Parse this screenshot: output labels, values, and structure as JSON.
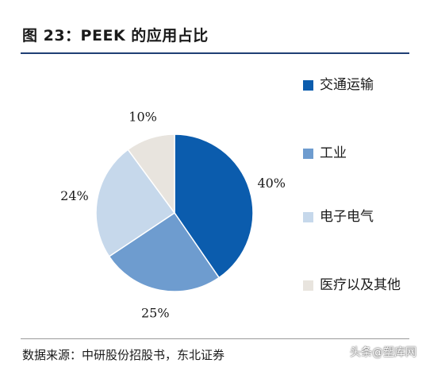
{
  "title": "图 23：PEEK 的应用占比",
  "source": "数据来源：中研股份招股书，东北证券",
  "watermark": "头条@塑库网",
  "colors": {
    "title_rule": "#1f3f74"
  },
  "chart_data": {
    "type": "pie",
    "title": "图 23：PEEK 的应用占比",
    "legend_position": "right",
    "slices": [
      {
        "name": "交通运输",
        "value": 40,
        "label": "40%",
        "color": "#0b5cad"
      },
      {
        "name": "工业",
        "value": 25,
        "label": "25%",
        "color": "#6e9ccf"
      },
      {
        "name": "电子电气",
        "value": 24,
        "label": "24%",
        "color": "#c6d8eb"
      },
      {
        "name": "医疗以及其他",
        "value": 10,
        "label": "10%",
        "color": "#e8e4de"
      }
    ]
  }
}
